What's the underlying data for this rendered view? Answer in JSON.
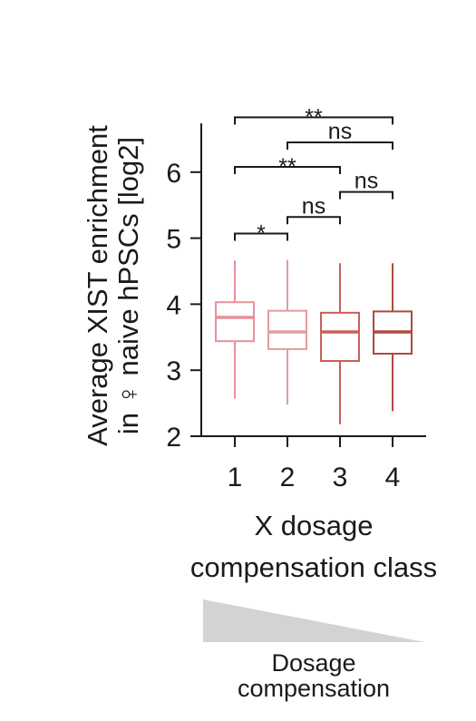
{
  "chart_data": {
    "type": "box",
    "ylabel_line1": "Average XIST enrichment",
    "ylabel_line2": "in ♀ naive hPSCs [log2]",
    "xlabel_line1": "X dosage",
    "xlabel_line2": "compensation class",
    "ylim": [
      2,
      6.7
    ],
    "yticks": [
      "2",
      "3",
      "4",
      "5",
      "6"
    ],
    "categories": [
      "1",
      "2",
      "3",
      "4"
    ],
    "series": [
      {
        "category": "1",
        "whisker_low": 2.57,
        "q1": 3.44,
        "median": 3.8,
        "q3": 4.03,
        "whisker_high": 4.66,
        "color": "#e8909a"
      },
      {
        "category": "2",
        "whisker_low": 2.48,
        "q1": 3.32,
        "median": 3.58,
        "q3": 3.9,
        "whisker_high": 4.67,
        "color": "#e39ca0"
      },
      {
        "category": "3",
        "whisker_low": 2.18,
        "q1": 3.14,
        "median": 3.58,
        "q3": 3.87,
        "whisker_high": 4.62,
        "color": "#c8605a"
      },
      {
        "category": "4",
        "whisker_low": 2.38,
        "q1": 3.25,
        "median": 3.58,
        "q3": 3.89,
        "whisker_high": 4.62,
        "color": "#b04a3c"
      }
    ],
    "comparisons": [
      {
        "from": "1",
        "to": "2",
        "level": 5.07,
        "label": "*"
      },
      {
        "from": "2",
        "to": "3",
        "level": 5.32,
        "label": "ns"
      },
      {
        "from": "1",
        "to": "3",
        "level": 6.08,
        "label": "**"
      },
      {
        "from": "3",
        "to": "4",
        "level": 5.7,
        "label": "ns"
      },
      {
        "from": "2",
        "to": "4",
        "level": 6.45,
        "label": "ns"
      },
      {
        "from": "1",
        "to": "4",
        "level": 6.83,
        "label": "**"
      }
    ],
    "gradient_caption_line1": "Dosage",
    "gradient_caption_line2": "compensation",
    "colors": {
      "axis": "#1a1a1a",
      "gradient": "#d3d3d5"
    }
  }
}
